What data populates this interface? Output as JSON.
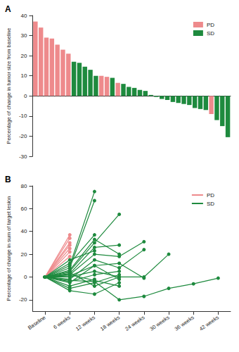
{
  "chart_data": [
    {
      "type": "bar",
      "title": "A",
      "categories": [
        null,
        null,
        null,
        null,
        null,
        null,
        null,
        null,
        null,
        null,
        null,
        null,
        null,
        null,
        null,
        null,
        null,
        null,
        null,
        null,
        null,
        null,
        null,
        null,
        null,
        null,
        null,
        null,
        null,
        null,
        null,
        null,
        null,
        null,
        null,
        null
      ],
      "series": [
        {
          "name": "PD",
          "color": "#ee8a8c",
          "values": [
            37,
            34,
            29,
            28.5,
            25.5,
            23,
            21,
            null,
            null,
            null,
            null,
            null,
            10,
            9.5,
            null,
            6.5,
            null,
            null,
            null,
            null,
            null,
            null,
            null,
            null,
            null,
            null,
            null,
            null,
            null,
            null,
            null,
            null,
            -9,
            null,
            null,
            null
          ]
        },
        {
          "name": "SD",
          "color": "#1e8a3e",
          "values": [
            null,
            null,
            null,
            null,
            null,
            null,
            null,
            17,
            16.5,
            14.5,
            13,
            10,
            null,
            null,
            9,
            null,
            6,
            4.5,
            4,
            3,
            2.5,
            0.5,
            -0.5,
            -1.5,
            -2,
            -3,
            -3.5,
            -4,
            -4.5,
            -6,
            -6.5,
            -7,
            null,
            -12,
            -15,
            -20.5
          ]
        }
      ],
      "ylabel": "Percentage of change in tumor size from baseline",
      "ylim": [
        -30,
        40
      ],
      "yticks": [
        -30,
        -20,
        -10,
        0,
        10,
        20,
        30,
        40
      ],
      "stacked": true,
      "legend": "upper right",
      "tick_labels": "y",
      "grid": false
    },
    {
      "type": "line",
      "title": "B",
      "categories": [
        "Baseline",
        "6 weeks",
        "12 weeks",
        "18 weeks",
        "24 weeks",
        "30 weeks",
        "36 weeks",
        "42 weeks"
      ],
      "series": [
        {
          "name": "PD",
          "color": "#ee8a8c",
          "values": [
            0,
            37,
            null,
            null,
            null,
            null,
            null,
            null
          ]
        },
        {
          "name": "PD",
          "color": "#ee8a8c",
          "values": [
            0,
            34,
            null,
            null,
            null,
            null,
            null,
            null
          ]
        },
        {
          "name": "PD",
          "color": "#ee8a8c",
          "values": [
            0,
            30,
            null,
            null,
            null,
            null,
            null,
            null
          ]
        },
        {
          "name": "PD",
          "color": "#ee8a8c",
          "values": [
            0,
            28,
            null,
            null,
            null,
            null,
            null,
            null
          ]
        },
        {
          "name": "PD",
          "color": "#ee8a8c",
          "values": [
            0,
            25,
            null,
            null,
            null,
            null,
            null,
            null
          ]
        },
        {
          "name": "PD",
          "color": "#ee8a8c",
          "values": [
            0,
            22,
            null,
            null,
            null,
            null,
            null,
            null
          ]
        },
        {
          "name": "PD",
          "color": "#ee8a8c",
          "values": [
            0,
            18,
            null,
            null,
            null,
            null,
            null,
            null
          ]
        },
        {
          "name": "SD",
          "color": "#1e8a3e",
          "values": [
            0,
            10,
            75,
            null,
            null,
            null,
            null,
            null
          ]
        },
        {
          "name": "SD",
          "color": "#1e8a3e",
          "values": [
            0,
            8,
            67,
            null,
            null,
            null,
            null,
            null
          ]
        },
        {
          "name": "SD",
          "color": "#1e8a3e",
          "values": [
            0,
            5,
            30,
            55,
            null,
            null,
            null,
            null
          ]
        },
        {
          "name": "SD",
          "color": "#1e8a3e",
          "values": [
            0,
            12,
            37,
            null,
            null,
            null,
            null,
            null
          ]
        },
        {
          "name": "SD",
          "color": "#1e8a3e",
          "values": [
            0,
            3,
            26,
            28,
            null,
            null,
            null,
            null
          ]
        },
        {
          "name": "SD",
          "color": "#1e8a3e",
          "values": [
            0,
            2,
            20,
            18,
            31,
            null,
            null,
            null
          ]
        },
        {
          "name": "SD",
          "color": "#1e8a3e",
          "values": [
            0,
            -2,
            15,
            8,
            24,
            null,
            null,
            null
          ]
        },
        {
          "name": "SD",
          "color": "#1e8a3e",
          "values": [
            0,
            6,
            33,
            20,
            null,
            null,
            null,
            null
          ]
        },
        {
          "name": "SD",
          "color": "#1e8a3e",
          "values": [
            0,
            -5,
            10,
            12,
            -1,
            null,
            null,
            null
          ]
        },
        {
          "name": "SD",
          "color": "#1e8a3e",
          "values": [
            0,
            0,
            5,
            0,
            0,
            20,
            null,
            null
          ]
        },
        {
          "name": "SD",
          "color": "#1e8a3e",
          "values": [
            0,
            -3,
            -4,
            -20,
            -17,
            -10,
            -6,
            -1
          ]
        },
        {
          "name": "SD",
          "color": "#1e8a3e",
          "values": [
            0,
            -12,
            -15,
            -5,
            null,
            null,
            null,
            null
          ]
        },
        {
          "name": "SD",
          "color": "#1e8a3e",
          "values": [
            0,
            -10,
            -5,
            2,
            null,
            null,
            null,
            null
          ]
        },
        {
          "name": "SD",
          "color": "#1e8a3e",
          "values": [
            0,
            4,
            -8,
            0,
            null,
            null,
            null,
            null
          ]
        },
        {
          "name": "SD",
          "color": "#1e8a3e",
          "values": [
            0,
            1,
            10,
            -2,
            null,
            null,
            null,
            null
          ]
        },
        {
          "name": "SD",
          "color": "#1e8a3e",
          "values": [
            0,
            15,
            23,
            null,
            null,
            null,
            null,
            null
          ]
        },
        {
          "name": "SD",
          "color": "#1e8a3e",
          "values": [
            0,
            -8,
            -2,
            null,
            null,
            null,
            null,
            null
          ]
        },
        {
          "name": "SD",
          "color": "#1e8a3e",
          "values": [
            0,
            2,
            -3,
            -8,
            null,
            null,
            null,
            null
          ]
        },
        {
          "name": "SD",
          "color": "#1e8a3e",
          "values": [
            0,
            -4,
            2,
            5,
            null,
            null,
            null,
            null
          ]
        }
      ],
      "ylabel": "Percentage of change in sum of target lesion",
      "ylim": [
        -30,
        80
      ],
      "yticks": [
        -20,
        0,
        20,
        40,
        60,
        80
      ],
      "legend": "upper right",
      "marker": "circle",
      "line_style": "solid",
      "grid": false
    }
  ]
}
